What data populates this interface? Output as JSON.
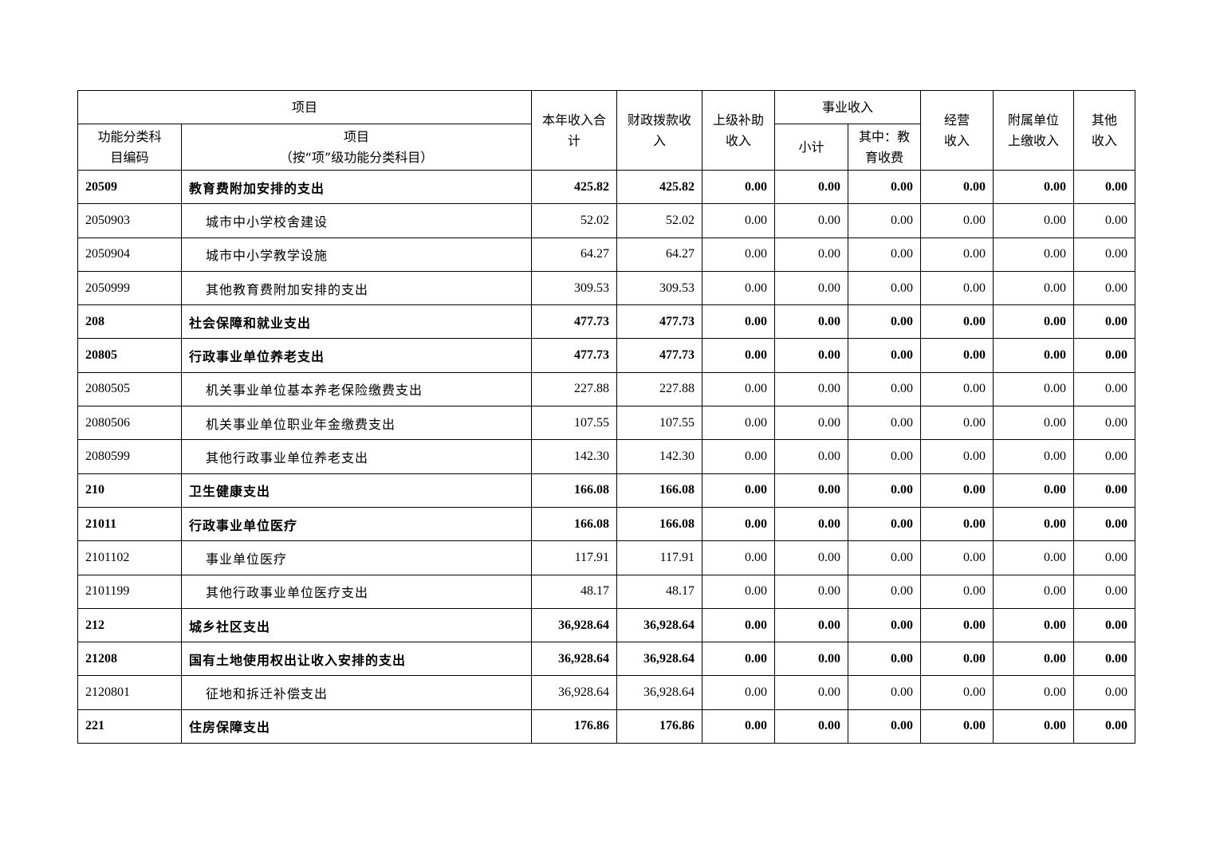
{
  "header": {
    "item": "项目",
    "total": "本年收入合计",
    "fiscal": "财政拨款收入",
    "superior": "上级补助收入",
    "business": "事业收入",
    "operating": "经营收入",
    "affiliated": "附属单位上缴收入",
    "other": "其他收入",
    "code": "功能分类科目编码",
    "item_sub": "项目",
    "item_note": "（按“项”级功能分类科目）",
    "subtotal": "小计",
    "edu_fee": "其中：教育收费"
  },
  "rows": [
    {
      "code": "20509",
      "name": "教育费附加安排的支出",
      "bold": true,
      "values": [
        "425.82",
        "425.82",
        "0.00",
        "0.00",
        "0.00",
        "0.00",
        "0.00",
        "0.00"
      ]
    },
    {
      "code": "2050903",
      "name": "城市中小学校舍建设",
      "bold": false,
      "values": [
        "52.02",
        "52.02",
        "0.00",
        "0.00",
        "0.00",
        "0.00",
        "0.00",
        "0.00"
      ]
    },
    {
      "code": "2050904",
      "name": "城市中小学教学设施",
      "bold": false,
      "values": [
        "64.27",
        "64.27",
        "0.00",
        "0.00",
        "0.00",
        "0.00",
        "0.00",
        "0.00"
      ]
    },
    {
      "code": "2050999",
      "name": "其他教育费附加安排的支出",
      "bold": false,
      "values": [
        "309.53",
        "309.53",
        "0.00",
        "0.00",
        "0.00",
        "0.00",
        "0.00",
        "0.00"
      ]
    },
    {
      "code": "208",
      "name": "社会保障和就业支出",
      "bold": true,
      "values": [
        "477.73",
        "477.73",
        "0.00",
        "0.00",
        "0.00",
        "0.00",
        "0.00",
        "0.00"
      ]
    },
    {
      "code": "20805",
      "name": "行政事业单位养老支出",
      "bold": true,
      "values": [
        "477.73",
        "477.73",
        "0.00",
        "0.00",
        "0.00",
        "0.00",
        "0.00",
        "0.00"
      ]
    },
    {
      "code": "2080505",
      "name": "机关事业单位基本养老保险缴费支出",
      "bold": false,
      "values": [
        "227.88",
        "227.88",
        "0.00",
        "0.00",
        "0.00",
        "0.00",
        "0.00",
        "0.00"
      ]
    },
    {
      "code": "2080506",
      "name": "机关事业单位职业年金缴费支出",
      "bold": false,
      "values": [
        "107.55",
        "107.55",
        "0.00",
        "0.00",
        "0.00",
        "0.00",
        "0.00",
        "0.00"
      ]
    },
    {
      "code": "2080599",
      "name": "其他行政事业单位养老支出",
      "bold": false,
      "values": [
        "142.30",
        "142.30",
        "0.00",
        "0.00",
        "0.00",
        "0.00",
        "0.00",
        "0.00"
      ]
    },
    {
      "code": "210",
      "name": "卫生健康支出",
      "bold": true,
      "values": [
        "166.08",
        "166.08",
        "0.00",
        "0.00",
        "0.00",
        "0.00",
        "0.00",
        "0.00"
      ]
    },
    {
      "code": "21011",
      "name": "行政事业单位医疗",
      "bold": true,
      "values": [
        "166.08",
        "166.08",
        "0.00",
        "0.00",
        "0.00",
        "0.00",
        "0.00",
        "0.00"
      ]
    },
    {
      "code": "2101102",
      "name": "事业单位医疗",
      "bold": false,
      "values": [
        "117.91",
        "117.91",
        "0.00",
        "0.00",
        "0.00",
        "0.00",
        "0.00",
        "0.00"
      ]
    },
    {
      "code": "2101199",
      "name": "其他行政事业单位医疗支出",
      "bold": false,
      "values": [
        "48.17",
        "48.17",
        "0.00",
        "0.00",
        "0.00",
        "0.00",
        "0.00",
        "0.00"
      ]
    },
    {
      "code": "212",
      "name": "城乡社区支出",
      "bold": true,
      "values": [
        "36,928.64",
        "36,928.64",
        "0.00",
        "0.00",
        "0.00",
        "0.00",
        "0.00",
        "0.00"
      ]
    },
    {
      "code": "21208",
      "name": "国有土地使用权出让收入安排的支出",
      "bold": true,
      "values": [
        "36,928.64",
        "36,928.64",
        "0.00",
        "0.00",
        "0.00",
        "0.00",
        "0.00",
        "0.00"
      ]
    },
    {
      "code": "2120801",
      "name": "征地和拆迁补偿支出",
      "bold": false,
      "values": [
        "36,928.64",
        "36,928.64",
        "0.00",
        "0.00",
        "0.00",
        "0.00",
        "0.00",
        "0.00"
      ]
    },
    {
      "code": "221",
      "name": "住房保障支出",
      "bold": true,
      "values": [
        "176.86",
        "176.86",
        "0.00",
        "0.00",
        "0.00",
        "0.00",
        "0.00",
        "0.00"
      ]
    }
  ]
}
